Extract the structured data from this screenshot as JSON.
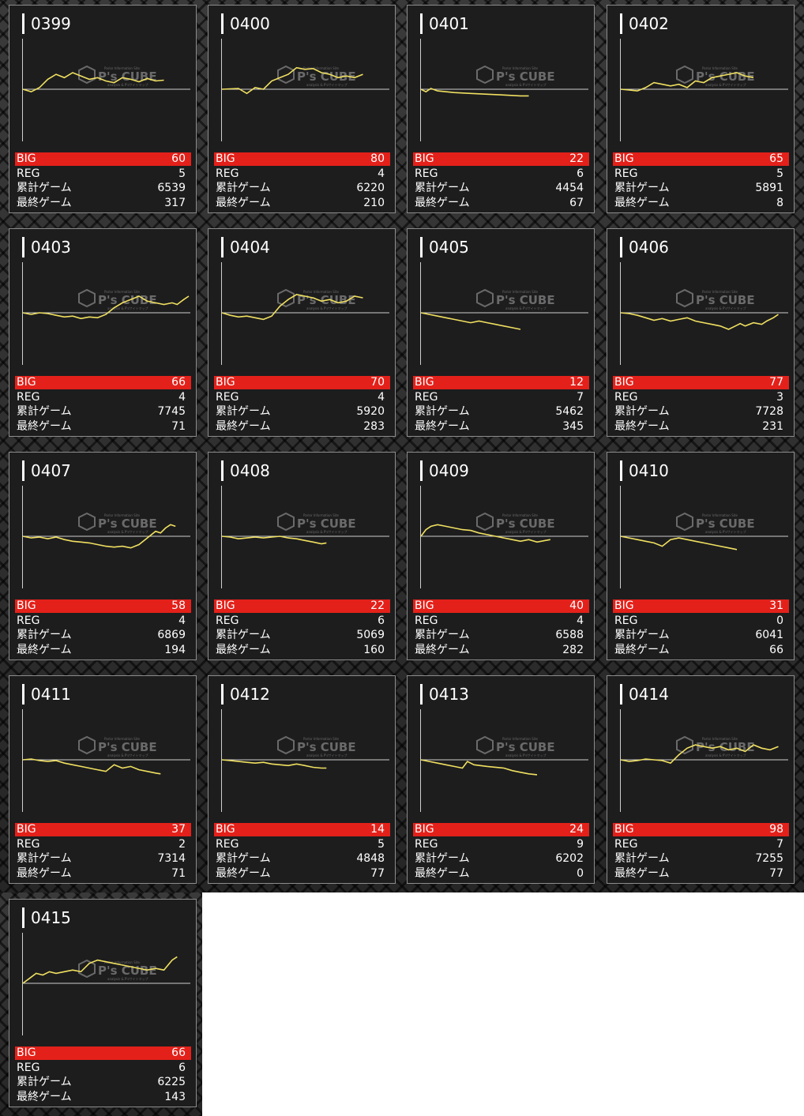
{
  "labels": {
    "big": "BIG",
    "reg": "REG",
    "total": "累計ゲーム",
    "last": "最終ゲーム"
  },
  "watermark": {
    "brand": "P's CUBE",
    "sub": "Parlor Information Site",
    "tag": "analysis & P'sサイトマップ"
  },
  "colors": {
    "graph_line": "#f0e060",
    "big_bar": "#e3211a",
    "card_bg": "#1d1d1e"
  },
  "machines": [
    {
      "id": "0399",
      "big": "60",
      "reg": "5",
      "total": "6539",
      "last": "317",
      "graph": [
        [
          0,
          0
        ],
        [
          0.05,
          -3
        ],
        [
          0.1,
          2
        ],
        [
          0.15,
          12
        ],
        [
          0.2,
          18
        ],
        [
          0.25,
          14
        ],
        [
          0.3,
          20
        ],
        [
          0.35,
          16
        ],
        [
          0.4,
          12
        ],
        [
          0.45,
          14
        ],
        [
          0.5,
          10
        ],
        [
          0.55,
          8
        ],
        [
          0.6,
          14
        ],
        [
          0.65,
          12
        ],
        [
          0.7,
          9
        ],
        [
          0.75,
          13
        ],
        [
          0.8,
          10
        ],
        [
          0.85,
          11
        ]
      ]
    },
    {
      "id": "0400",
      "big": "80",
      "reg": "4",
      "total": "6220",
      "last": "210",
      "graph": [
        [
          0,
          0
        ],
        [
          0.1,
          1
        ],
        [
          0.15,
          -5
        ],
        [
          0.2,
          2
        ],
        [
          0.25,
          0
        ],
        [
          0.3,
          10
        ],
        [
          0.35,
          14
        ],
        [
          0.4,
          18
        ],
        [
          0.45,
          26
        ],
        [
          0.5,
          24
        ],
        [
          0.55,
          25
        ],
        [
          0.6,
          20
        ],
        [
          0.65,
          18
        ],
        [
          0.7,
          14
        ],
        [
          0.75,
          16
        ],
        [
          0.8,
          14
        ],
        [
          0.85,
          18
        ]
      ]
    },
    {
      "id": "0401",
      "big": "22",
      "reg": "6",
      "total": "4454",
      "last": "67",
      "graph": [
        [
          0,
          0
        ],
        [
          0.03,
          -3
        ],
        [
          0.06,
          1
        ],
        [
          0.1,
          -2
        ],
        [
          0.2,
          -4
        ],
        [
          0.3,
          -5
        ],
        [
          0.4,
          -6
        ],
        [
          0.5,
          -7
        ],
        [
          0.6,
          -8
        ],
        [
          0.65,
          -8
        ]
      ]
    },
    {
      "id": "0402",
      "big": "65",
      "reg": "5",
      "total": "5891",
      "last": "8",
      "graph": [
        [
          0,
          0
        ],
        [
          0.05,
          -1
        ],
        [
          0.1,
          -2
        ],
        [
          0.15,
          2
        ],
        [
          0.2,
          8
        ],
        [
          0.25,
          6
        ],
        [
          0.3,
          4
        ],
        [
          0.35,
          6
        ],
        [
          0.4,
          2
        ],
        [
          0.45,
          10
        ],
        [
          0.5,
          8
        ],
        [
          0.55,
          14
        ],
        [
          0.6,
          16
        ],
        [
          0.65,
          18
        ],
        [
          0.7,
          20
        ],
        [
          0.75,
          16
        ],
        [
          0.8,
          14
        ]
      ]
    },
    {
      "id": "0403",
      "big": "66",
      "reg": "4",
      "total": "7745",
      "last": "71",
      "graph": [
        [
          0,
          0
        ],
        [
          0.05,
          -2
        ],
        [
          0.1,
          0
        ],
        [
          0.15,
          -1
        ],
        [
          0.2,
          -3
        ],
        [
          0.25,
          -5
        ],
        [
          0.3,
          -4
        ],
        [
          0.35,
          -7
        ],
        [
          0.4,
          -5
        ],
        [
          0.45,
          -6
        ],
        [
          0.5,
          -2
        ],
        [
          0.55,
          6
        ],
        [
          0.6,
          12
        ],
        [
          0.65,
          16
        ],
        [
          0.7,
          20
        ],
        [
          0.75,
          14
        ],
        [
          0.8,
          12
        ],
        [
          0.85,
          10
        ],
        [
          0.9,
          12
        ],
        [
          0.93,
          10
        ],
        [
          0.97,
          16
        ],
        [
          1.0,
          20
        ]
      ]
    },
    {
      "id": "0404",
      "big": "70",
      "reg": "4",
      "total": "5920",
      "last": "283",
      "graph": [
        [
          0,
          0
        ],
        [
          0.05,
          -3
        ],
        [
          0.1,
          -5
        ],
        [
          0.15,
          -4
        ],
        [
          0.2,
          -6
        ],
        [
          0.25,
          -8
        ],
        [
          0.3,
          -4
        ],
        [
          0.35,
          8
        ],
        [
          0.4,
          16
        ],
        [
          0.45,
          22
        ],
        [
          0.5,
          20
        ],
        [
          0.55,
          18
        ],
        [
          0.6,
          14
        ],
        [
          0.65,
          16
        ],
        [
          0.7,
          12
        ],
        [
          0.75,
          14
        ],
        [
          0.8,
          20
        ],
        [
          0.85,
          18
        ]
      ]
    },
    {
      "id": "0405",
      "big": "12",
      "reg": "7",
      "total": "5462",
      "last": "345",
      "graph": [
        [
          0,
          0
        ],
        [
          0.05,
          -2
        ],
        [
          0.1,
          -4
        ],
        [
          0.15,
          -6
        ],
        [
          0.2,
          -8
        ],
        [
          0.25,
          -10
        ],
        [
          0.3,
          -12
        ],
        [
          0.35,
          -10
        ],
        [
          0.4,
          -12
        ],
        [
          0.45,
          -14
        ],
        [
          0.5,
          -16
        ],
        [
          0.55,
          -18
        ],
        [
          0.6,
          -20
        ]
      ]
    },
    {
      "id": "0406",
      "big": "77",
      "reg": "3",
      "total": "7728",
      "last": "231",
      "graph": [
        [
          0,
          0
        ],
        [
          0.05,
          -1
        ],
        [
          0.1,
          -3
        ],
        [
          0.15,
          -6
        ],
        [
          0.2,
          -9
        ],
        [
          0.25,
          -7
        ],
        [
          0.3,
          -10
        ],
        [
          0.35,
          -8
        ],
        [
          0.4,
          -6
        ],
        [
          0.45,
          -10
        ],
        [
          0.5,
          -12
        ],
        [
          0.55,
          -14
        ],
        [
          0.6,
          -16
        ],
        [
          0.65,
          -20
        ],
        [
          0.7,
          -15
        ],
        [
          0.72,
          -13
        ],
        [
          0.75,
          -16
        ],
        [
          0.8,
          -12
        ],
        [
          0.85,
          -14
        ],
        [
          0.88,
          -10
        ],
        [
          0.92,
          -6
        ],
        [
          0.95,
          -2
        ]
      ]
    },
    {
      "id": "0407",
      "big": "58",
      "reg": "4",
      "total": "6869",
      "last": "194",
      "graph": [
        [
          0,
          0
        ],
        [
          0.05,
          -2
        ],
        [
          0.1,
          -1
        ],
        [
          0.15,
          -3
        ],
        [
          0.2,
          -1
        ],
        [
          0.25,
          -4
        ],
        [
          0.3,
          -6
        ],
        [
          0.35,
          -7
        ],
        [
          0.4,
          -8
        ],
        [
          0.45,
          -10
        ],
        [
          0.5,
          -12
        ],
        [
          0.55,
          -13
        ],
        [
          0.6,
          -12
        ],
        [
          0.65,
          -14
        ],
        [
          0.7,
          -10
        ],
        [
          0.75,
          -2
        ],
        [
          0.8,
          6
        ],
        [
          0.83,
          4
        ],
        [
          0.86,
          10
        ],
        [
          0.89,
          14
        ],
        [
          0.92,
          12
        ]
      ]
    },
    {
      "id": "0408",
      "big": "22",
      "reg": "6",
      "total": "5069",
      "last": "160",
      "graph": [
        [
          0,
          0
        ],
        [
          0.05,
          -1
        ],
        [
          0.1,
          -3
        ],
        [
          0.15,
          -2
        ],
        [
          0.2,
          -1
        ],
        [
          0.25,
          -2
        ],
        [
          0.3,
          -1
        ],
        [
          0.35,
          0
        ],
        [
          0.4,
          -2
        ],
        [
          0.45,
          -3
        ],
        [
          0.5,
          -5
        ],
        [
          0.55,
          -7
        ],
        [
          0.6,
          -9
        ],
        [
          0.63,
          -8
        ]
      ]
    },
    {
      "id": "0409",
      "big": "40",
      "reg": "4",
      "total": "6588",
      "last": "282",
      "graph": [
        [
          0,
          0
        ],
        [
          0.03,
          8
        ],
        [
          0.06,
          12
        ],
        [
          0.1,
          14
        ],
        [
          0.15,
          12
        ],
        [
          0.2,
          10
        ],
        [
          0.25,
          8
        ],
        [
          0.3,
          7
        ],
        [
          0.35,
          4
        ],
        [
          0.4,
          2
        ],
        [
          0.45,
          0
        ],
        [
          0.5,
          -2
        ],
        [
          0.55,
          -4
        ],
        [
          0.6,
          -6
        ],
        [
          0.65,
          -4
        ],
        [
          0.7,
          -7
        ],
        [
          0.75,
          -5
        ],
        [
          0.78,
          -4
        ]
      ]
    },
    {
      "id": "0410",
      "big": "31",
      "reg": "0",
      "total": "6041",
      "last": "66",
      "graph": [
        [
          0,
          0
        ],
        [
          0.05,
          -2
        ],
        [
          0.1,
          -4
        ],
        [
          0.15,
          -6
        ],
        [
          0.2,
          -8
        ],
        [
          0.25,
          -12
        ],
        [
          0.3,
          -4
        ],
        [
          0.35,
          -2
        ],
        [
          0.4,
          -4
        ],
        [
          0.45,
          -6
        ],
        [
          0.5,
          -8
        ],
        [
          0.55,
          -10
        ],
        [
          0.6,
          -12
        ],
        [
          0.65,
          -14
        ],
        [
          0.7,
          -16
        ]
      ]
    },
    {
      "id": "0411",
      "big": "37",
      "reg": "2",
      "total": "7314",
      "last": "71",
      "graph": [
        [
          0,
          0
        ],
        [
          0.05,
          1
        ],
        [
          0.1,
          -1
        ],
        [
          0.15,
          -2
        ],
        [
          0.2,
          -1
        ],
        [
          0.25,
          -4
        ],
        [
          0.3,
          -6
        ],
        [
          0.35,
          -8
        ],
        [
          0.4,
          -10
        ],
        [
          0.45,
          -12
        ],
        [
          0.5,
          -14
        ],
        [
          0.55,
          -6
        ],
        [
          0.6,
          -10
        ],
        [
          0.65,
          -8
        ],
        [
          0.7,
          -12
        ],
        [
          0.75,
          -14
        ],
        [
          0.8,
          -16
        ],
        [
          0.83,
          -17
        ]
      ]
    },
    {
      "id": "0412",
      "big": "14",
      "reg": "5",
      "total": "4848",
      "last": "77",
      "graph": [
        [
          0,
          0
        ],
        [
          0.05,
          -1
        ],
        [
          0.1,
          -2
        ],
        [
          0.15,
          -3
        ],
        [
          0.2,
          -4
        ],
        [
          0.25,
          -3
        ],
        [
          0.3,
          -5
        ],
        [
          0.35,
          -6
        ],
        [
          0.4,
          -7
        ],
        [
          0.45,
          -5
        ],
        [
          0.5,
          -7
        ],
        [
          0.55,
          -9
        ],
        [
          0.6,
          -10
        ],
        [
          0.63,
          -10
        ]
      ]
    },
    {
      "id": "0413",
      "big": "24",
      "reg": "9",
      "total": "6202",
      "last": "0",
      "graph": [
        [
          0,
          0
        ],
        [
          0.05,
          -2
        ],
        [
          0.1,
          -4
        ],
        [
          0.15,
          -6
        ],
        [
          0.2,
          -8
        ],
        [
          0.25,
          -10
        ],
        [
          0.28,
          -2
        ],
        [
          0.32,
          -6
        ],
        [
          0.4,
          -8
        ],
        [
          0.5,
          -10
        ],
        [
          0.55,
          -13
        ],
        [
          0.6,
          -15
        ],
        [
          0.65,
          -17
        ],
        [
          0.7,
          -18
        ]
      ]
    },
    {
      "id": "0414",
      "big": "98",
      "reg": "7",
      "total": "7255",
      "last": "77",
      "graph": [
        [
          0,
          0
        ],
        [
          0.05,
          -2
        ],
        [
          0.1,
          -1
        ],
        [
          0.15,
          1
        ],
        [
          0.2,
          0
        ],
        [
          0.25,
          -1
        ],
        [
          0.3,
          -4
        ],
        [
          0.35,
          6
        ],
        [
          0.4,
          14
        ],
        [
          0.45,
          18
        ],
        [
          0.5,
          16
        ],
        [
          0.55,
          14
        ],
        [
          0.6,
          16
        ],
        [
          0.65,
          12
        ],
        [
          0.7,
          14
        ],
        [
          0.75,
          10
        ],
        [
          0.8,
          18
        ],
        [
          0.85,
          14
        ],
        [
          0.9,
          12
        ],
        [
          0.95,
          16
        ]
      ]
    },
    {
      "id": "0415",
      "big": "66",
      "reg": "6",
      "total": "6225",
      "last": "143",
      "graph": [
        [
          0,
          0
        ],
        [
          0.04,
          6
        ],
        [
          0.08,
          12
        ],
        [
          0.12,
          10
        ],
        [
          0.16,
          14
        ],
        [
          0.2,
          12
        ],
        [
          0.25,
          14
        ],
        [
          0.3,
          16
        ],
        [
          0.35,
          14
        ],
        [
          0.4,
          24
        ],
        [
          0.45,
          28
        ],
        [
          0.5,
          26
        ],
        [
          0.55,
          24
        ],
        [
          0.6,
          22
        ],
        [
          0.65,
          20
        ],
        [
          0.7,
          18
        ],
        [
          0.75,
          16
        ],
        [
          0.8,
          18
        ],
        [
          0.85,
          16
        ],
        [
          0.9,
          28
        ],
        [
          0.93,
          32
        ]
      ]
    }
  ]
}
